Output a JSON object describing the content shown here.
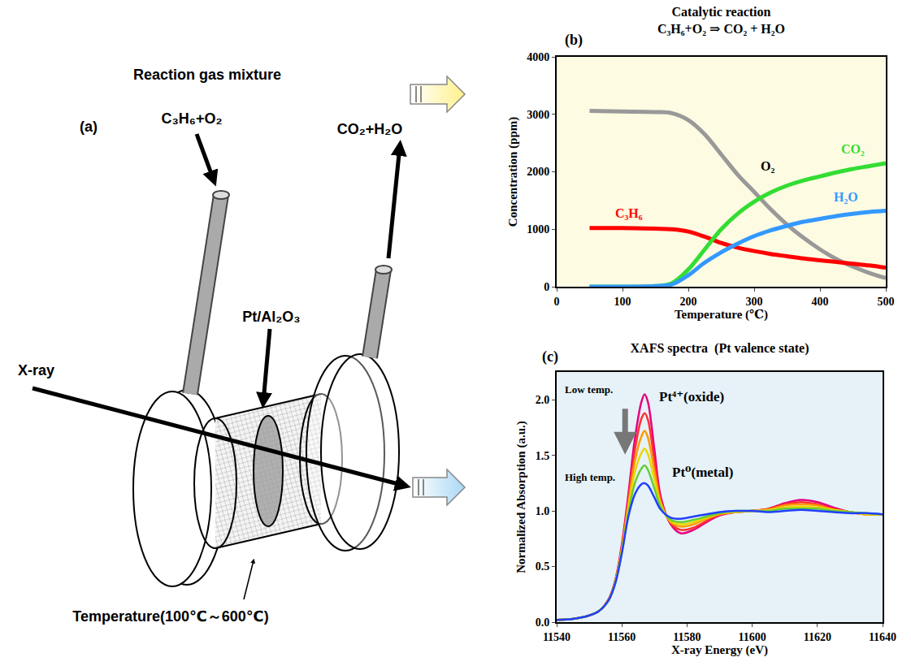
{
  "diagram": {
    "panel_label": "(a)",
    "title": "Reaction gas mixture",
    "inlet": "C₃H₆+O₂",
    "outlet": "CO₂+H₂O",
    "sample": "Pt/Al₂O₃",
    "beam": "X-ray",
    "temperature": "Temperature(100℃～600℃)"
  },
  "chart_data": [
    {
      "type": "line",
      "title": "Catalytic reaction",
      "subtitle": "C₃H₆+O₂ ⇒ CO₂ + H₂O",
      "x_label": "Temperature (℃)",
      "y_label": "Concentration (ppm)",
      "annotations": [
        "(b)"
      ],
      "x": [
        50,
        100,
        150,
        175,
        200,
        225,
        250,
        275,
        300,
        325,
        350,
        375,
        400,
        425,
        450,
        475,
        500
      ],
      "series": [
        {
          "name": "O₂",
          "color": "#999999",
          "values": [
            3060,
            3050,
            3040,
            3020,
            2900,
            2650,
            2300,
            1950,
            1650,
            1350,
            1080,
            850,
            650,
            480,
            350,
            240,
            150
          ]
        },
        {
          "name": "C₃H₆",
          "color": "#ff0000",
          "values": [
            1020,
            1020,
            1010,
            1000,
            960,
            870,
            760,
            680,
            620,
            570,
            530,
            490,
            460,
            430,
            400,
            370,
            330
          ]
        },
        {
          "name": "CO₂",
          "color": "#33dd33",
          "values": [
            0,
            0,
            10,
            60,
            300,
            650,
            1000,
            1270,
            1480,
            1640,
            1760,
            1850,
            1920,
            1990,
            2050,
            2100,
            2150
          ]
        },
        {
          "name": "H₂O",
          "color": "#3399ff",
          "values": [
            0,
            0,
            10,
            40,
            200,
            420,
            600,
            750,
            880,
            980,
            1060,
            1130,
            1180,
            1230,
            1270,
            1300,
            1320
          ]
        }
      ],
      "xlim": [
        0,
        500
      ],
      "xticks": [
        0,
        100,
        200,
        300,
        400,
        500
      ],
      "ylim": [
        0,
        4000
      ],
      "yticks": [
        0,
        1000,
        2000,
        3000,
        4000
      ],
      "grid": false
    },
    {
      "type": "line",
      "title": "XAFS spectra  (Pt valence state)",
      "x_label": "X-ray Energy (eV)",
      "y_label": "Normalized Absorption (a.u.)",
      "annotations": [
        "(c)",
        "Low temp.",
        "High temp.",
        "Pt⁴⁺(oxide)",
        "Pt⁰(metal)"
      ],
      "x": [
        11540,
        11545,
        11550,
        11553,
        11556,
        11558,
        11560,
        11562,
        11564,
        11566,
        11567,
        11568,
        11570,
        11572,
        11575,
        11578,
        11582,
        11586,
        11590,
        11595,
        11600,
        11605,
        11610,
        11615,
        11620,
        11625,
        11630,
        11635,
        11640
      ],
      "series": [
        {
          "color": "#e6007e",
          "values": [
            0.02,
            0.03,
            0.06,
            0.1,
            0.21,
            0.38,
            0.7,
            1.15,
            1.65,
            1.98,
            2.05,
            1.98,
            1.55,
            1.12,
            0.88,
            0.8,
            0.83,
            0.9,
            0.96,
            0.99,
            1.0,
            1.02,
            1.07,
            1.1,
            1.08,
            1.03,
            0.99,
            0.97,
            0.97
          ]
        },
        {
          "color": "#ff3030",
          "values": [
            0.02,
            0.03,
            0.06,
            0.1,
            0.21,
            0.37,
            0.68,
            1.1,
            1.55,
            1.83,
            1.88,
            1.82,
            1.45,
            1.09,
            0.89,
            0.83,
            0.85,
            0.91,
            0.97,
            0.99,
            1.0,
            1.02,
            1.06,
            1.08,
            1.06,
            1.02,
            0.99,
            0.97,
            0.97
          ]
        },
        {
          "color": "#ff9900",
          "values": [
            0.02,
            0.03,
            0.06,
            0.1,
            0.2,
            0.37,
            0.66,
            1.06,
            1.45,
            1.67,
            1.72,
            1.66,
            1.36,
            1.07,
            0.9,
            0.86,
            0.88,
            0.93,
            0.97,
            0.99,
            1.0,
            1.01,
            1.05,
            1.06,
            1.05,
            1.01,
            0.99,
            0.97,
            0.97
          ]
        },
        {
          "color": "#e6d800",
          "values": [
            0.02,
            0.03,
            0.06,
            0.1,
            0.2,
            0.36,
            0.65,
            1.02,
            1.35,
            1.52,
            1.56,
            1.51,
            1.28,
            1.05,
            0.91,
            0.88,
            0.9,
            0.94,
            0.98,
            0.99,
            1.0,
            1.01,
            1.03,
            1.04,
            1.03,
            1.01,
            0.99,
            0.97,
            0.97
          ]
        },
        {
          "color": "#66cc33",
          "values": [
            0.02,
            0.03,
            0.06,
            0.1,
            0.2,
            0.36,
            0.63,
            0.98,
            1.25,
            1.38,
            1.41,
            1.37,
            1.2,
            1.03,
            0.92,
            0.9,
            0.92,
            0.95,
            0.98,
            1.0,
            1.0,
            1.0,
            1.02,
            1.02,
            1.02,
            1.0,
            0.99,
            0.98,
            0.97
          ]
        },
        {
          "color": "#2040ff",
          "values": [
            0.02,
            0.03,
            0.06,
            0.1,
            0.2,
            0.35,
            0.62,
            0.95,
            1.15,
            1.24,
            1.25,
            1.23,
            1.12,
            1.01,
            0.94,
            0.93,
            0.95,
            0.97,
            0.99,
            1.0,
            1.0,
            0.99,
            1.0,
            1.01,
            1.0,
            0.99,
            0.98,
            0.98,
            0.97
          ]
        }
      ],
      "xlim": [
        11540,
        11640
      ],
      "xticks": [
        11540,
        11560,
        11580,
        11600,
        11620,
        11640
      ],
      "ylim": [
        0,
        2.25
      ],
      "yticks": [
        {
          "value": 0,
          "label": "0.0"
        },
        {
          "value": 0.5,
          "label": "0.5"
        },
        {
          "value": 1,
          "label": "1.0"
        },
        {
          "value": 1.5,
          "label": "1.5"
        },
        {
          "value": 2,
          "label": "2.0"
        }
      ],
      "grid": false
    }
  ]
}
